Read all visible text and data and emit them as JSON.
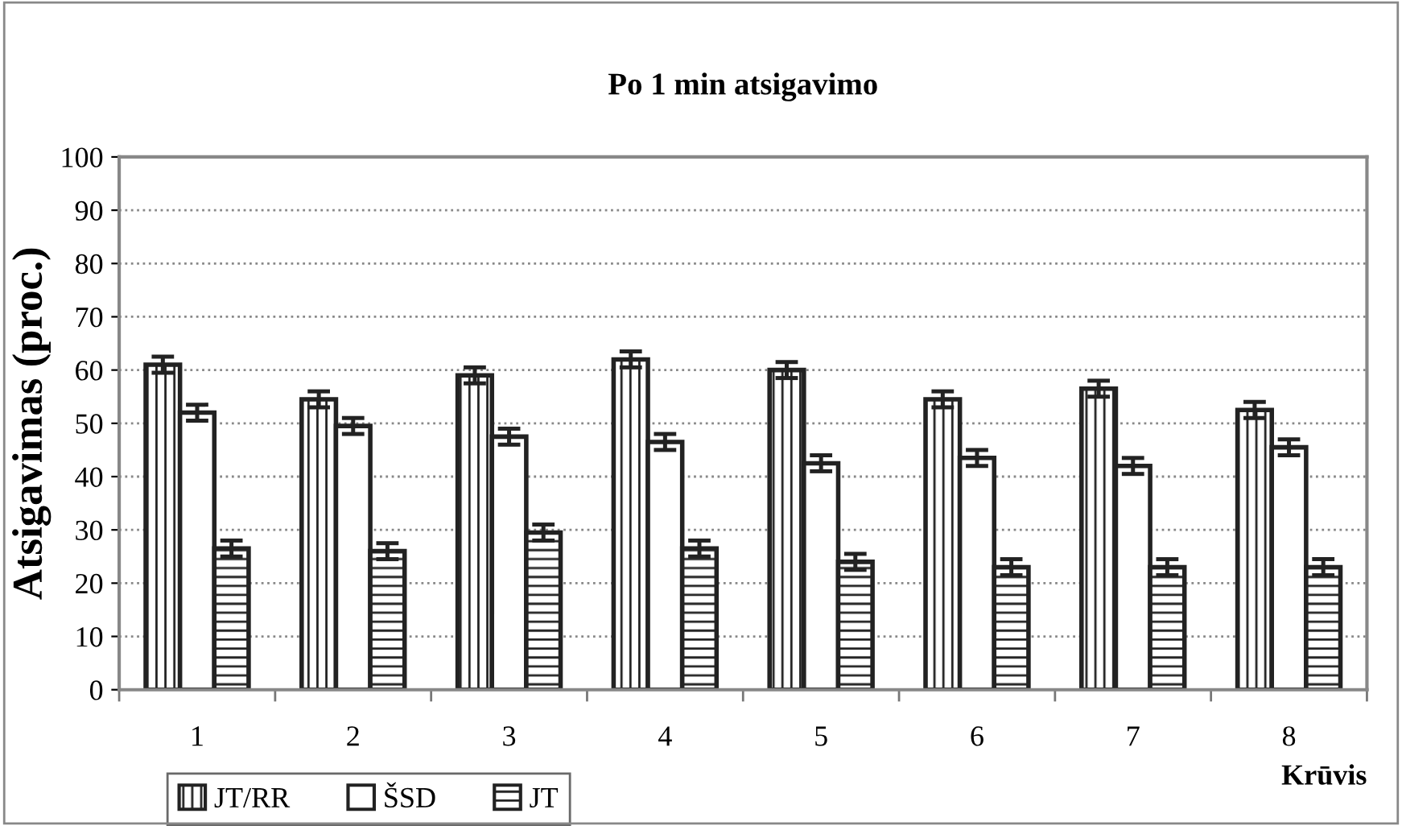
{
  "chart_data": {
    "type": "bar",
    "title": "Po 1 min atsigavimo",
    "ylabel": "Atsigavimas (proc.)",
    "xlabel": "Krūvis",
    "categories": [
      "1",
      "2",
      "3",
      "4",
      "5",
      "6",
      "7",
      "8"
    ],
    "series": [
      {
        "name": "JT/RR",
        "color": "#222222",
        "values": [
          61,
          54.5,
          59,
          62,
          60,
          54.5,
          56.5,
          52.5
        ],
        "errors": [
          1.5,
          1.5,
          1.5,
          1.5,
          1.5,
          1.5,
          1.5,
          1.5
        ]
      },
      {
        "name": "ŠSD",
        "color": "#ffffff",
        "values": [
          52,
          49.5,
          47.5,
          46.5,
          42.5,
          43.5,
          42,
          45.5
        ],
        "errors": [
          1.5,
          1.5,
          1.5,
          1.5,
          1.5,
          1.5,
          1.5,
          1.5
        ]
      },
      {
        "name": "JT",
        "color": "#222222",
        "values": [
          26.5,
          26,
          29.5,
          26.5,
          24,
          23,
          23,
          23
        ],
        "errors": [
          1.5,
          1.5,
          1.5,
          1.5,
          1.5,
          1.5,
          1.5,
          1.5
        ]
      }
    ],
    "ylim": [
      0,
      100
    ],
    "yticks": [
      0,
      10,
      20,
      30,
      40,
      50,
      60,
      70,
      80,
      90,
      100
    ],
    "grid": "y",
    "legend": "bottom"
  }
}
